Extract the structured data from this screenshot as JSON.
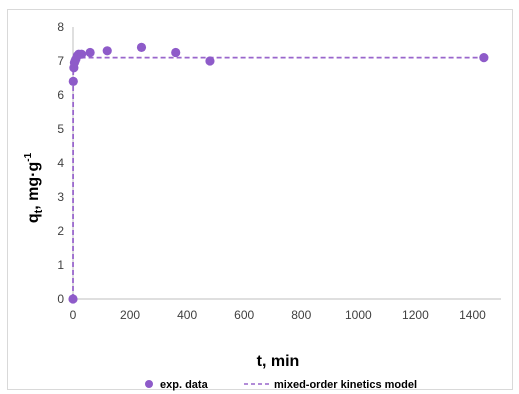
{
  "chart_data": {
    "type": "scatter",
    "xlabel": "t, min",
    "ylabel_main": "q",
    "ylabel_sub": "t",
    "ylabel_unit": ", mg·g",
    "ylabel_sup": "-1",
    "xlim": [
      0,
      1500
    ],
    "ylim": [
      0,
      8
    ],
    "xticks": [
      0,
      200,
      400,
      600,
      800,
      1000,
      1200,
      1400
    ],
    "yticks": [
      0,
      1,
      2,
      3,
      4,
      5,
      6,
      7,
      8
    ],
    "grid": "none",
    "legend_placement": "bottom",
    "colors": {
      "points": "#8e5bc9",
      "model": "#9966cc",
      "axis": "#bfbfbf"
    },
    "series": [
      {
        "name": "exp. data",
        "kind": "scatter",
        "x": [
          0,
          1,
          3,
          5,
          7,
          10,
          15,
          20,
          30,
          60,
          120,
          240,
          360,
          480,
          1440
        ],
        "y": [
          0,
          6.4,
          6.8,
          6.95,
          7.0,
          7.05,
          7.15,
          7.2,
          7.2,
          7.25,
          7.3,
          7.4,
          7.25,
          7.0,
          7.1
        ]
      },
      {
        "name": "mixed-order kinetics model",
        "kind": "dashed-line",
        "x": [
          0,
          0.5,
          1,
          2,
          5,
          10,
          30,
          60,
          1440
        ],
        "y": [
          0,
          6.4,
          7.0,
          7.08,
          7.1,
          7.1,
          7.1,
          7.1,
          7.1
        ]
      }
    ]
  }
}
